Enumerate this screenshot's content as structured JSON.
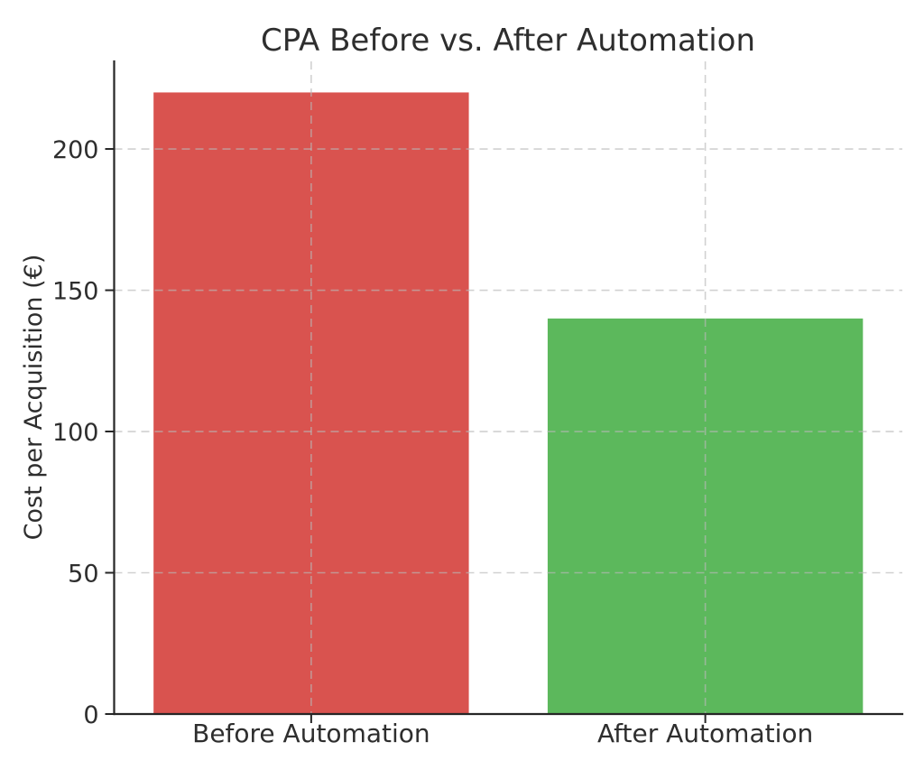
{
  "figure": {
    "background": "#ffffff"
  },
  "chart_data": {
    "type": "bar",
    "title": "CPA Before vs. After Automation",
    "categories": [
      "Before Automation",
      "After Automation"
    ],
    "values": [
      220,
      140
    ],
    "bar_colors": [
      "#d9534f",
      "#5cb85c"
    ],
    "ylabel": "Cost per Acquisition (€)",
    "yticks": [
      0,
      50,
      100,
      150,
      200
    ],
    "ytick_labels": [
      "0",
      "50",
      "100",
      "150",
      "200"
    ],
    "ylim": [
      0,
      231
    ],
    "bar_width_fraction": 0.8,
    "grid": {
      "visible": true,
      "style": "dashed",
      "color": "#b9b9b9",
      "opacity": 0.65,
      "on_top_of_bars": true,
      "horizontal": true,
      "vertical": true
    },
    "legend": false,
    "text_color": "#2e2e2e",
    "axis_color": "#262626",
    "spines": [
      "left",
      "bottom"
    ]
  }
}
